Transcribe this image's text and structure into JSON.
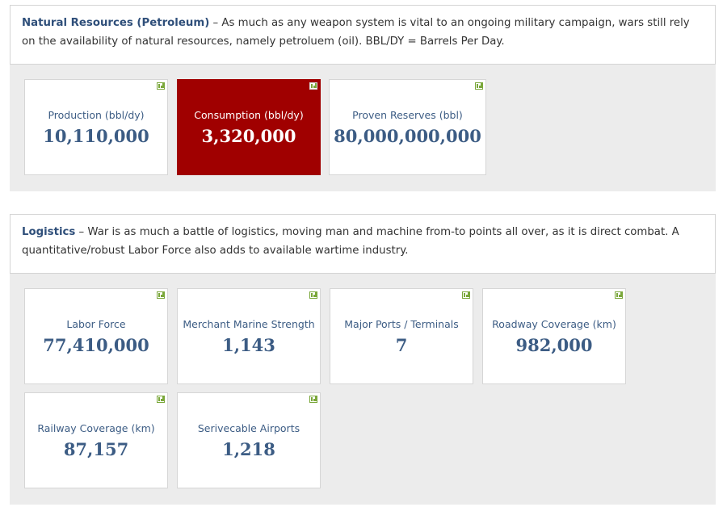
{
  "colors": {
    "accent_red": "#a00000",
    "title_blue": "#2f4f7a",
    "value_blue": "#3c5c84",
    "icon_green": "#7aa73a",
    "panel_gray": "#ececec"
  },
  "natural_resources": {
    "title": "Natural Resources (Petroleum)",
    "description": " – As much as any weapon system is vital to an ongoing military campaign, wars still rely on the availability of natural resources, namely petroluem (oil). BBL/DY = Barrels Per Day.",
    "cards": [
      {
        "label": "Production (bbl/dy)",
        "value": "10,110,000",
        "icon": "bar-chart-icon"
      },
      {
        "label": "Consumption (bbl/dy)",
        "value": "3,320,000",
        "icon": "bar-chart-icon"
      },
      {
        "label": "Proven Reserves (bbl)",
        "value": "80,000,000,000",
        "icon": "bar-chart-icon"
      }
    ]
  },
  "logistics": {
    "title": "Logistics",
    "description": " – War is as much a battle of logistics, moving man and machine from-to points all over, as it is direct combat. A quantitative/robust Labor Force also adds to available wartime industry.",
    "cards": [
      {
        "label": "Labor Force",
        "value": "77,410,000",
        "icon": "bar-chart-icon"
      },
      {
        "label": "Merchant Marine Strength",
        "value": "1,143",
        "icon": "bar-chart-icon"
      },
      {
        "label": "Major Ports / Terminals",
        "value": "7",
        "icon": "bar-chart-icon"
      },
      {
        "label": "Roadway Coverage (km)",
        "value": "982,000",
        "icon": "bar-chart-icon"
      },
      {
        "label": "Railway Coverage (km)",
        "value": "87,157",
        "icon": "bar-chart-icon"
      },
      {
        "label": "Serivecable Airports",
        "value": "1,218",
        "icon": "bar-chart-icon"
      }
    ]
  }
}
